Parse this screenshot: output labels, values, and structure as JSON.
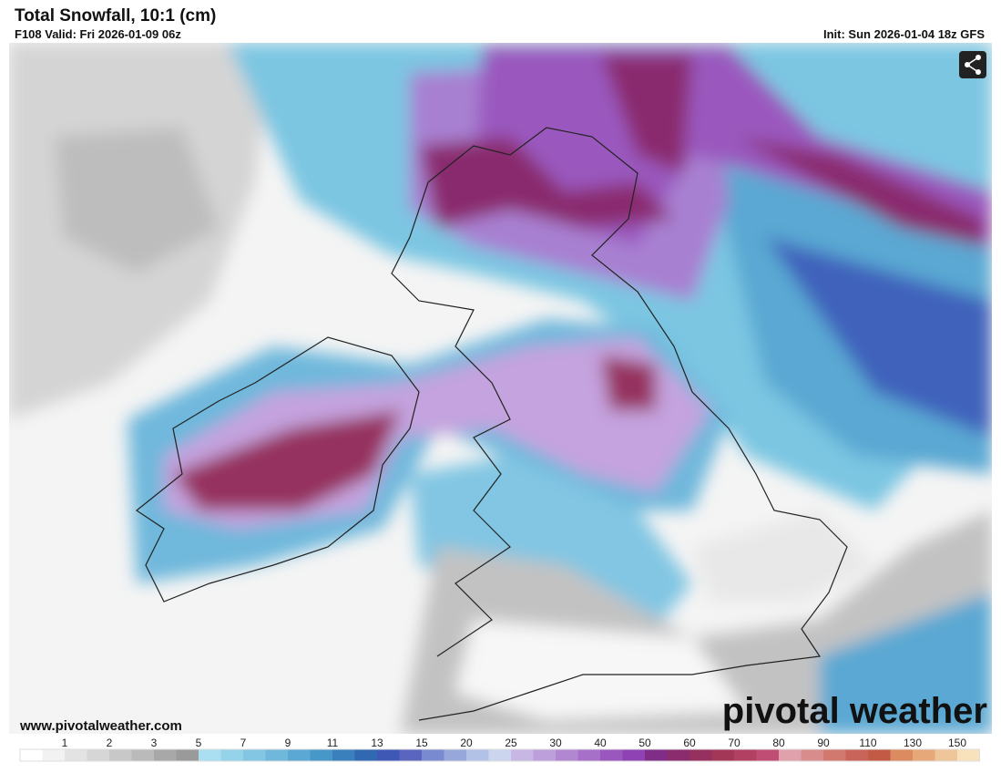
{
  "header": {
    "title": "Total Snowfall, 10:1 (cm)",
    "valid": "F108 Valid: Fri 2026-01-09 06z",
    "init": "Init: Sun 2026-01-04 18z GFS"
  },
  "footer": {
    "website": "www.pivotalweather.com",
    "logo": "pivotal weather"
  },
  "colorbar": {
    "ticks": [
      1,
      2,
      3,
      5,
      7,
      9,
      11,
      13,
      15,
      20,
      25,
      30,
      40,
      50,
      60,
      70,
      80,
      90,
      110,
      130,
      150
    ],
    "colors": [
      "#ffffff",
      "#f2f2f2",
      "#e3e3e3",
      "#d6d6d6",
      "#c8c8c8",
      "#bababa",
      "#a8a8a8",
      "#9a9a9a",
      "#a9dff0",
      "#95d3ea",
      "#82c6e3",
      "#6fb8dc",
      "#5aa8d3",
      "#4797c8",
      "#3a80bd",
      "#3168b2",
      "#3f57b5",
      "#5a65c0",
      "#7a8ad0",
      "#97a7dc",
      "#b2c2e6",
      "#cbd5ee",
      "#c8b6e4",
      "#bd9fdb",
      "#b287d2",
      "#a66fc8",
      "#9a58be",
      "#8e42b3",
      "#7f2d86",
      "#8a2c6e",
      "#96305f",
      "#a33758",
      "#b24062",
      "#c04d74",
      "#e0a0ac",
      "#d98c8c",
      "#d1786f",
      "#c8645a",
      "#c25a45",
      "#dc8a60",
      "#e6a878",
      "#efc59a",
      "#f7e2bc"
    ]
  }
}
